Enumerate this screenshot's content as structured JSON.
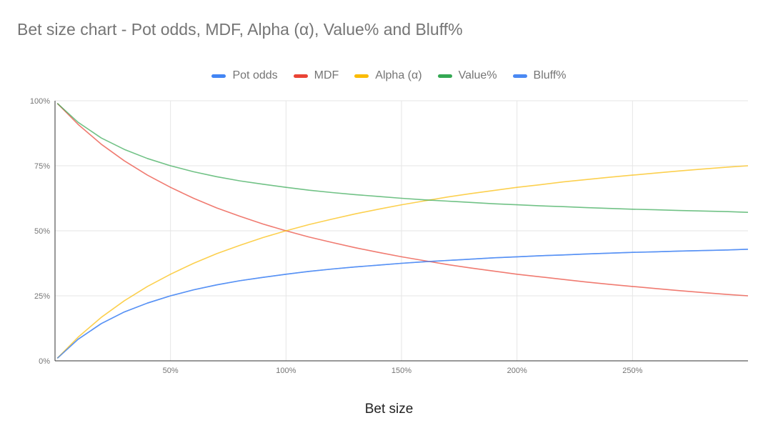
{
  "chart_data": {
    "type": "line",
    "title": "Bet size chart - Pot odds, MDF, Alpha (α), Value% and Bluff%",
    "xlabel": "Bet size",
    "ylabel": "",
    "xlim": [
      0,
      300
    ],
    "ylim": [
      0,
      100
    ],
    "x_ticks": [
      {
        "value": 50,
        "label": "50%"
      },
      {
        "value": 100,
        "label": "100%"
      },
      {
        "value": 150,
        "label": "150%"
      },
      {
        "value": 200,
        "label": "200%"
      },
      {
        "value": 250,
        "label": "250%"
      }
    ],
    "y_ticks": [
      {
        "value": 0,
        "label": "0%"
      },
      {
        "value": 25,
        "label": "25%"
      },
      {
        "value": 50,
        "label": "50%"
      },
      {
        "value": 75,
        "label": "75%"
      },
      {
        "value": 100,
        "label": "100%"
      }
    ],
    "grid": true,
    "legend_position": "top-center",
    "x": [
      1,
      10,
      20,
      30,
      40,
      50,
      60,
      70,
      80,
      90,
      100,
      110,
      120,
      130,
      140,
      150,
      160,
      170,
      180,
      190,
      200,
      210,
      220,
      230,
      240,
      250,
      260,
      270,
      280,
      290,
      300
    ],
    "series": [
      {
        "name": "Pot odds",
        "color": "#4285f4",
        "values": [
          1,
          8.3,
          14.3,
          18.8,
          22.2,
          25,
          27.3,
          29.2,
          30.8,
          32.1,
          33.3,
          34.4,
          35.3,
          36.1,
          36.8,
          37.5,
          38.1,
          38.6,
          39.1,
          39.6,
          40,
          40.4,
          40.7,
          41.1,
          41.4,
          41.7,
          41.9,
          42.2,
          42.4,
          42.6,
          42.9
        ]
      },
      {
        "name": "MDF",
        "color": "#ea4335",
        "values": [
          99,
          90.9,
          83.3,
          76.9,
          71.4,
          66.7,
          62.5,
          58.8,
          55.6,
          52.6,
          50,
          47.6,
          45.5,
          43.5,
          41.7,
          40,
          38.5,
          37,
          35.7,
          34.5,
          33.3,
          32.3,
          31.3,
          30.3,
          29.4,
          28.6,
          27.8,
          27,
          26.3,
          25.6,
          25
        ]
      },
      {
        "name": "Alpha (α)",
        "color": "#fbbc04",
        "values": [
          1,
          9.1,
          16.7,
          23.1,
          28.6,
          33.3,
          37.5,
          41.2,
          44.4,
          47.4,
          50,
          52.4,
          54.5,
          56.5,
          58.3,
          60,
          61.5,
          63,
          64.3,
          65.5,
          66.7,
          67.7,
          68.8,
          69.7,
          70.6,
          71.4,
          72.2,
          73,
          73.7,
          74.4,
          75
        ]
      },
      {
        "name": "Value%",
        "color": "#34a853",
        "values": [
          99,
          91.7,
          85.7,
          81.3,
          77.8,
          75,
          72.7,
          70.8,
          69.2,
          67.9,
          66.7,
          65.6,
          64.7,
          63.9,
          63.2,
          62.5,
          61.9,
          61.4,
          60.9,
          60.4,
          60,
          59.6,
          59.3,
          58.9,
          58.6,
          58.3,
          58.1,
          57.8,
          57.6,
          57.4,
          57.1
        ]
      },
      {
        "name": "Bluff%",
        "color": "#4a89f3",
        "values": [
          1,
          8.3,
          14.3,
          18.8,
          22.2,
          25,
          27.3,
          29.2,
          30.8,
          32.1,
          33.3,
          34.4,
          35.3,
          36.1,
          36.8,
          37.5,
          38.1,
          38.6,
          39.1,
          39.6,
          40,
          40.4,
          40.7,
          41.1,
          41.4,
          41.7,
          41.9,
          42.2,
          42.4,
          42.6,
          42.9
        ]
      }
    ]
  }
}
